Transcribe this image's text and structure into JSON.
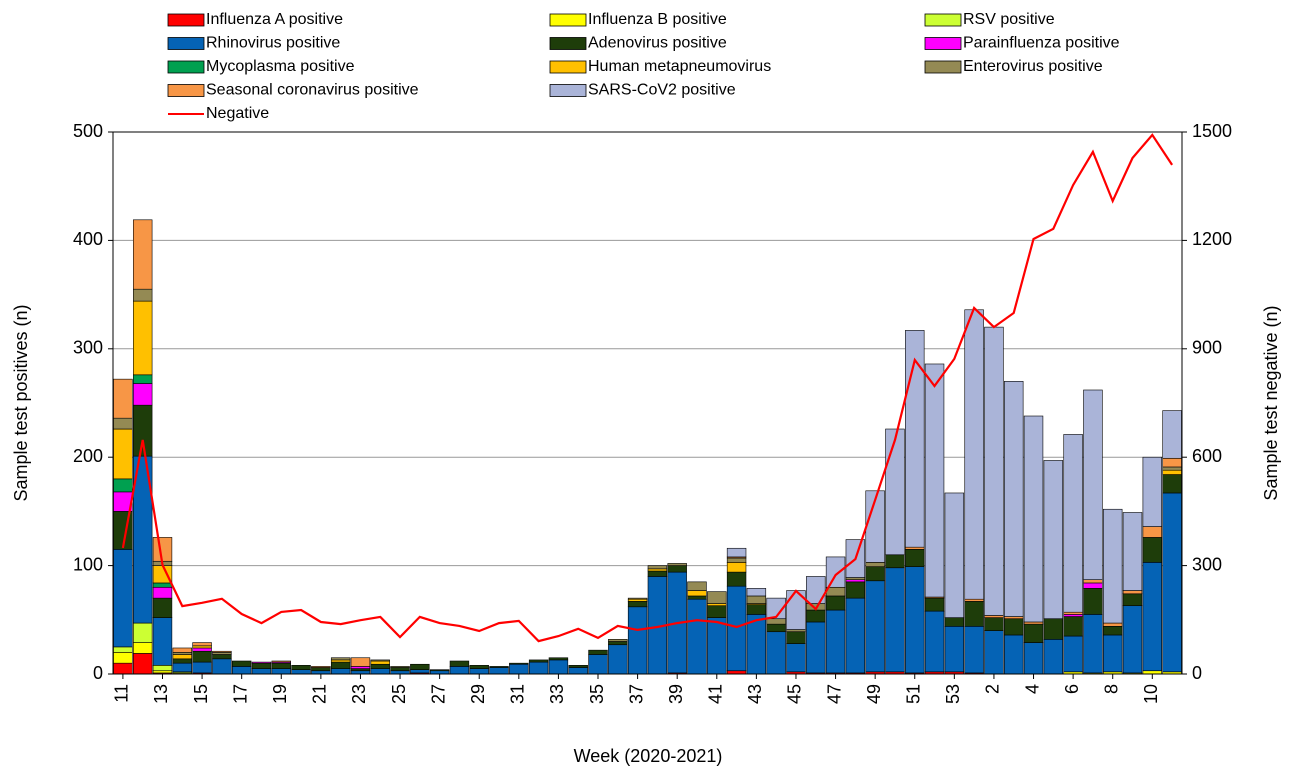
{
  "chart_data": {
    "type": "bar",
    "stacked": true,
    "x_label": "Week (2020-2021)",
    "y_label": "Sample test positives (n)",
    "y2_label": "Sample test negative (n)",
    "categories": [
      "11",
      null,
      "13",
      null,
      "15",
      null,
      "17",
      null,
      "19",
      null,
      "21",
      null,
      "23",
      null,
      "25",
      null,
      "27",
      null,
      "29",
      null,
      "31",
      null,
      "33",
      null,
      "35",
      null,
      "37",
      null,
      "39",
      null,
      "41",
      null,
      "43",
      null,
      "45",
      null,
      "47",
      null,
      "49",
      null,
      "51",
      null,
      "53",
      null,
      "2",
      null,
      "4",
      null,
      "6",
      null,
      "8",
      null,
      "10",
      null
    ],
    "ylim": [
      0,
      500
    ],
    "yticks": [
      0,
      100,
      200,
      300,
      400,
      500
    ],
    "y2lim": [
      0,
      1500
    ],
    "y2ticks": [
      0,
      300,
      600,
      900,
      1200,
      1500
    ],
    "grid": true,
    "series": [
      {
        "name": "Influenza A positive",
        "color": "#ff0000",
        "values": [
          10,
          19,
          1,
          0,
          1,
          0,
          0,
          0,
          0,
          0,
          0,
          0,
          0,
          0,
          0,
          1,
          0,
          0,
          0,
          0,
          0,
          0,
          0,
          0,
          0,
          0,
          0,
          0,
          1,
          0,
          0,
          3,
          0,
          0,
          2,
          1,
          1,
          1,
          2,
          2,
          1,
          2,
          2,
          1,
          0,
          0,
          0,
          0,
          0,
          0,
          0,
          0,
          0,
          0
        ]
      },
      {
        "name": "Influenza B positive",
        "color": "#ffff00",
        "values": [
          10,
          10,
          2,
          1,
          0,
          0,
          0,
          0,
          0,
          0,
          0,
          0,
          0,
          0,
          0,
          0,
          0,
          0,
          0,
          0,
          0,
          0,
          0,
          0,
          0,
          0,
          0,
          0,
          0,
          0,
          0,
          0,
          0,
          0,
          0,
          0,
          0,
          0,
          0,
          0,
          0,
          0,
          0,
          0,
          0,
          0,
          0,
          0,
          2,
          1,
          2,
          1,
          3,
          2
        ]
      },
      {
        "name": "RSV positive",
        "color": "#ccff33",
        "values": [
          5,
          18,
          5,
          1,
          0,
          0,
          0,
          0,
          0,
          0,
          0,
          0,
          0,
          0,
          0,
          0,
          0,
          0,
          0,
          0,
          0,
          0,
          0,
          0,
          0,
          0,
          0,
          0,
          0,
          0,
          0,
          0,
          0,
          0,
          0,
          0,
          0,
          0,
          0,
          0,
          0,
          0,
          0,
          0,
          0,
          0,
          0,
          0,
          0,
          0,
          0,
          0,
          0,
          0
        ]
      },
      {
        "name": "Rhinovirus positive",
        "color": "#0563b5",
        "values": [
          90,
          154,
          44,
          8,
          10,
          14,
          7,
          5,
          5,
          4,
          3,
          5,
          3,
          5,
          3,
          3,
          3,
          7,
          5,
          6,
          9,
          11,
          13,
          6,
          18,
          27,
          62,
          90,
          93,
          69,
          52,
          78,
          55,
          39,
          26,
          47,
          58,
          69,
          84,
          96,
          98,
          56,
          42,
          43,
          40,
          36,
          29,
          32,
          33,
          54,
          34,
          62,
          100,
          165
        ]
      },
      {
        "name": "Adenovirus positive",
        "color": "#1e3d0a",
        "values": [
          35,
          47,
          18,
          4,
          10,
          4,
          5,
          5,
          5,
          4,
          3,
          6,
          2,
          4,
          3,
          5,
          1,
          5,
          3,
          1,
          1,
          2,
          2,
          2,
          4,
          3,
          5,
          5,
          6,
          3,
          11,
          13,
          9,
          7,
          11,
          11,
          13,
          15,
          13,
          12,
          16,
          12,
          8,
          23,
          12,
          15,
          17,
          19,
          18,
          24,
          8,
          11,
          23,
          17
        ]
      },
      {
        "name": "Parainfluenza positive",
        "color": "#ff00ff",
        "values": [
          18,
          20,
          10,
          0,
          3,
          0,
          0,
          1,
          1,
          0,
          0,
          0,
          2,
          0,
          0,
          0,
          0,
          0,
          0,
          0,
          0,
          0,
          0,
          0,
          0,
          0,
          0,
          0,
          0,
          0,
          0,
          0,
          0,
          0,
          0,
          0,
          0,
          2,
          0,
          0,
          0,
          0,
          0,
          0,
          0,
          0,
          0,
          0,
          2,
          5,
          0,
          0,
          0,
          0
        ]
      },
      {
        "name": "Mycoplasma positive",
        "color": "#00a050",
        "values": [
          12,
          8,
          4,
          0,
          0,
          0,
          0,
          0,
          0,
          0,
          0,
          0,
          0,
          0,
          0,
          0,
          0,
          0,
          0,
          0,
          0,
          0,
          0,
          0,
          0,
          0,
          0,
          0,
          0,
          0,
          0,
          0,
          0,
          0,
          0,
          0,
          0,
          0,
          0,
          0,
          0,
          0,
          0,
          0,
          0,
          0,
          0,
          0,
          0,
          0,
          0,
          0,
          0,
          0
        ]
      },
      {
        "name": "Human metapneumovirus",
        "color": "#ffc000",
        "values": [
          46,
          68,
          16,
          4,
          2,
          0,
          0,
          0,
          0,
          0,
          0,
          2,
          0,
          3,
          0,
          0,
          0,
          0,
          0,
          0,
          0,
          0,
          0,
          0,
          0,
          0,
          2,
          2,
          0,
          5,
          2,
          9,
          1,
          0,
          0,
          0,
          0,
          0,
          0,
          0,
          0,
          0,
          0,
          0,
          0,
          0,
          0,
          0,
          0,
          0,
          0,
          0,
          0,
          4
        ]
      },
      {
        "name": "Enterovirus positive",
        "color": "#948a54",
        "values": [
          10,
          11,
          4,
          2,
          0,
          2,
          0,
          0,
          0,
          0,
          0,
          2,
          0,
          1,
          1,
          0,
          0,
          0,
          0,
          0,
          0,
          0,
          0,
          0,
          0,
          2,
          1,
          3,
          2,
          8,
          11,
          4,
          7,
          5,
          2,
          6,
          8,
          2,
          4,
          0,
          0,
          0,
          0,
          0,
          0,
          0,
          0,
          0,
          0,
          0,
          0,
          0,
          0,
          3
        ]
      },
      {
        "name": "Seasonal coronavirus positive",
        "color": "#f79646",
        "values": [
          36,
          64,
          22,
          4,
          3,
          1,
          0,
          0,
          1,
          0,
          1,
          0,
          8,
          0,
          0,
          0,
          0,
          0,
          0,
          0,
          0,
          0,
          0,
          0,
          0,
          0,
          0,
          0,
          0,
          0,
          0,
          1,
          0,
          0,
          0,
          0,
          0,
          0,
          0,
          0,
          2,
          1,
          0,
          2,
          2,
          2,
          2,
          0,
          2,
          3,
          3,
          3,
          10,
          8
        ]
      },
      {
        "name": "SARS-CoV2 positive",
        "color": "#aab4d8",
        "values": [
          0,
          0,
          0,
          0,
          0,
          0,
          0,
          0,
          0,
          0,
          0,
          0,
          0,
          0,
          0,
          0,
          0,
          0,
          0,
          0,
          0,
          0,
          0,
          0,
          0,
          0,
          0,
          0,
          0,
          0,
          0,
          8,
          7,
          19,
          36,
          25,
          28,
          35,
          66,
          116,
          200,
          215,
          115,
          267,
          266,
          217,
          190,
          146,
          164,
          175,
          105,
          72,
          64,
          44
        ]
      },
      {
        "name": "Negative",
        "color": "#ff0000",
        "axis": "y2",
        "values": [
          349,
          648,
          302,
          188,
          197,
          208,
          166,
          141,
          172,
          177,
          144,
          138,
          149,
          158,
          102,
          158,
          141,
          133,
          119,
          141,
          147,
          91,
          105,
          125,
          100,
          133,
          122,
          130,
          141,
          149,
          144,
          130,
          149,
          158,
          230,
          180,
          274,
          318,
          482,
          648,
          869,
          797,
          872,
          1013,
          960,
          999,
          1204,
          1232,
          1353,
          1445,
          1309,
          1428,
          1492,
          1409
        ]
      }
    ]
  }
}
